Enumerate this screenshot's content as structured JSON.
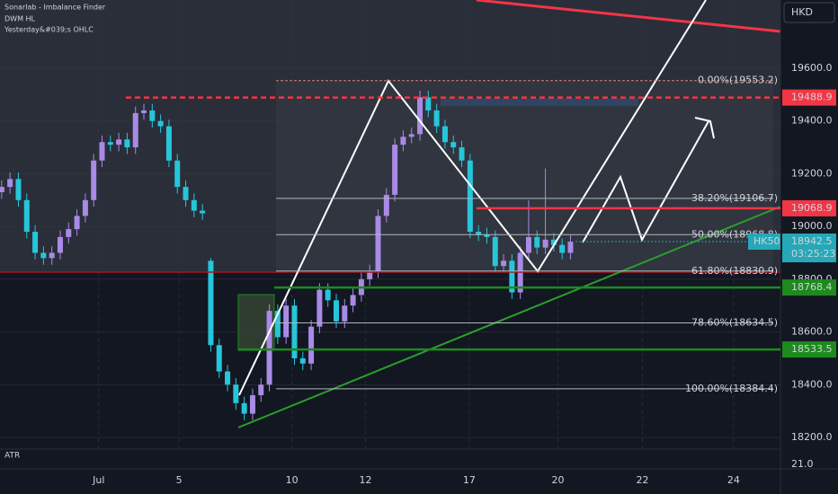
{
  "header": {
    "indicators": [
      "Sonarlab - Imbalance Finder",
      "DWM HL",
      "Yesterday&#039;s OHLC"
    ]
  },
  "chart_data": {
    "type": "candlestick",
    "currency": "HKD",
    "symbol": "HK50",
    "countdown": "03:25:23",
    "atr_label": "ATR",
    "atr_tick": "21.0",
    "xlim": [
      -0.2,
      93.1
    ],
    "xticks": [
      {
        "value": 11.6,
        "label": "Jul"
      },
      {
        "value": 21.2,
        "label": "5"
      },
      {
        "value": 34.7,
        "label": "10"
      },
      {
        "value": 43.5,
        "label": "12"
      },
      {
        "value": 55.9,
        "label": "17"
      },
      {
        "value": 66.5,
        "label": "20"
      },
      {
        "value": 76.6,
        "label": "22"
      },
      {
        "value": 87.5,
        "label": "24"
      }
    ],
    "ylim": [
      18155.7,
      19858.9
    ],
    "yticks": [
      {
        "value": 18200,
        "label": "18200.0"
      },
      {
        "value": 18400,
        "label": "18400.0"
      },
      {
        "value": 18600,
        "label": "18600.0"
      },
      {
        "value": 18800,
        "label": "18800.0"
      },
      {
        "value": 19000,
        "label": "19000.0"
      },
      {
        "value": 19200,
        "label": "19200.0"
      },
      {
        "value": 19400,
        "label": "19400.0"
      },
      {
        "value": 19600,
        "label": "19600.0"
      }
    ],
    "up_color": "#a98ae6",
    "down_color": "#26c6da",
    "candles": [
      [
        19130,
        19175,
        19105,
        19150
      ],
      [
        19150,
        19205,
        19125,
        19180
      ],
      [
        19180,
        19205,
        19075,
        19100
      ],
      [
        19100,
        19125,
        18955,
        18980
      ],
      [
        18980,
        19005,
        18875,
        18900
      ],
      [
        18900,
        18925,
        18855,
        18880
      ],
      [
        18880,
        18925,
        18855,
        18900
      ],
      [
        18900,
        18985,
        18875,
        18960
      ],
      [
        18960,
        19015,
        18935,
        18990
      ],
      [
        18990,
        19065,
        18965,
        19040
      ],
      [
        19040,
        19125,
        19015,
        19100
      ],
      [
        19100,
        19275,
        19075,
        19250
      ],
      [
        19250,
        19345,
        19225,
        19320
      ],
      [
        19320,
        19345,
        19285,
        19310
      ],
      [
        19310,
        19355,
        19285,
        19330
      ],
      [
        19330,
        19355,
        19275,
        19300
      ],
      [
        19300,
        19455,
        19275,
        19430
      ],
      [
        19430,
        19465,
        19405,
        19440
      ],
      [
        19440,
        19465,
        19375,
        19400
      ],
      [
        19400,
        19425,
        19355,
        19380
      ],
      [
        19380,
        19405,
        19225,
        19250
      ],
      [
        19250,
        19275,
        19125,
        19150
      ],
      [
        19150,
        19175,
        19075,
        19100
      ],
      [
        19100,
        19125,
        19035,
        19060
      ],
      [
        19060,
        19085,
        19025,
        19050
      ],
      [
        18870,
        18880,
        18525,
        18550
      ],
      [
        18550,
        18575,
        18425,
        18450
      ],
      [
        18450,
        18475,
        18375,
        18400
      ],
      [
        18400,
        18425,
        18305,
        18330
      ],
      [
        18330,
        18355,
        18265,
        18290
      ],
      [
        18290,
        18385,
        18265,
        18360
      ],
      [
        18360,
        18425,
        18335,
        18400
      ],
      [
        18400,
        18705,
        18375,
        18680
      ],
      [
        18680,
        18705,
        18555,
        18580
      ],
      [
        18580,
        18725,
        18555,
        18700
      ],
      [
        18700,
        18725,
        18475,
        18500
      ],
      [
        18500,
        18525,
        18455,
        18480
      ],
      [
        18480,
        18645,
        18455,
        18620
      ],
      [
        18620,
        18785,
        18595,
        18760
      ],
      [
        18760,
        18785,
        18695,
        18720
      ],
      [
        18720,
        18745,
        18615,
        18640
      ],
      [
        18640,
        18725,
        18615,
        18700
      ],
      [
        18700,
        18765,
        18675,
        18740
      ],
      [
        18740,
        18825,
        18715,
        18800
      ],
      [
        18800,
        18855,
        18775,
        18830
      ],
      [
        18830,
        19065,
        18805,
        19040
      ],
      [
        19040,
        19145,
        19015,
        19120
      ],
      [
        19120,
        19335,
        19095,
        19310
      ],
      [
        19310,
        19365,
        19285,
        19340
      ],
      [
        19340,
        19375,
        19315,
        19350
      ],
      [
        19350,
        19515,
        19325,
        19490
      ],
      [
        19490,
        19515,
        19415,
        19440
      ],
      [
        19440,
        19465,
        19355,
        19380
      ],
      [
        19380,
        19405,
        19295,
        19320
      ],
      [
        19320,
        19345,
        19275,
        19300
      ],
      [
        19300,
        19325,
        19225,
        19250
      ],
      [
        19250,
        19275,
        18955,
        18980
      ],
      [
        18980,
        19005,
        18945,
        18970
      ],
      [
        18970,
        18995,
        18935,
        18960
      ],
      [
        18960,
        18985,
        18825,
        18850
      ],
      [
        18850,
        18895,
        18825,
        18870
      ],
      [
        18870,
        18895,
        18725,
        18750
      ],
      [
        18750,
        18925,
        18725,
        18900
      ],
      [
        18900,
        19100,
        18875,
        18960
      ],
      [
        18960,
        18985,
        18895,
        18920
      ],
      [
        18920,
        19220,
        18895,
        18950
      ],
      [
        18950,
        18975,
        18905,
        18930
      ],
      [
        18930,
        18955,
        18875,
        18900
      ],
      [
        18900,
        18967,
        18875,
        18942.5
      ]
    ],
    "fib_levels": [
      {
        "label": "0.00%(19553.2)",
        "value": 19553.2
      },
      {
        "label": "38.20%(19106.7)",
        "value": 19106.7
      },
      {
        "label": "50.00%(18968.8)",
        "value": 18968.8
      },
      {
        "label": "61.80%(18830.9)",
        "value": 18830.9
      },
      {
        "label": "78.60%(18634.5)",
        "value": 18634.5
      },
      {
        "label": "100.00%(18384.4)",
        "value": 18384.4
      }
    ],
    "price_labels": [
      {
        "label": "19488.9",
        "value": 19488.9,
        "color": "#f23645"
      },
      {
        "label": "19068.9",
        "value": 19068.9,
        "color": "#f23645"
      },
      {
        "label": "18942.5",
        "value": 18942.5,
        "color": "#26a8b8"
      },
      {
        "label": "18768.4",
        "value": 18768.4,
        "color": "#1e8a1e"
      },
      {
        "label": "18533.5",
        "value": 18533.5,
        "color": "#1e8a1e"
      }
    ]
  }
}
